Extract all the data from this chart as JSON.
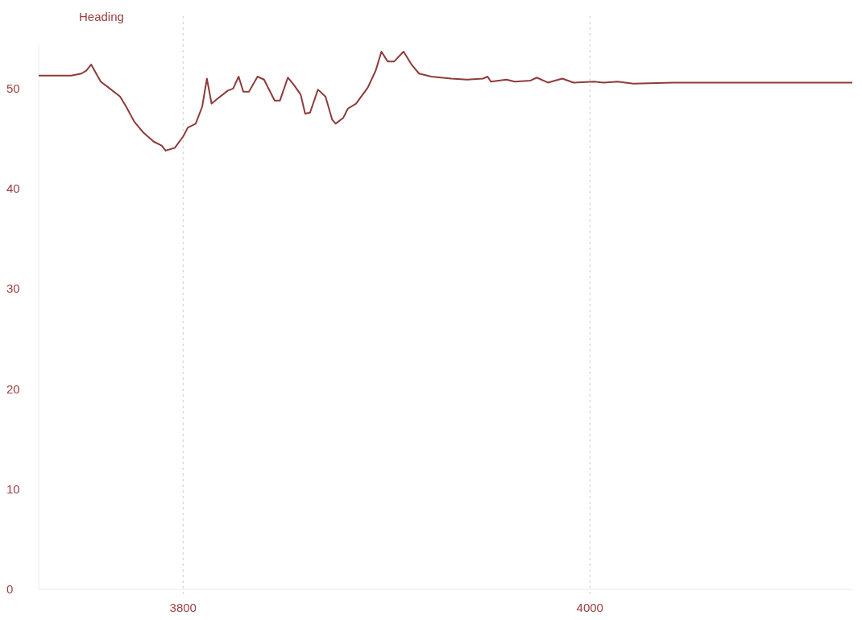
{
  "chart_data": {
    "type": "line",
    "title": "Heading",
    "xlim": [
      3729,
      4129
    ],
    "xticks": [
      3800,
      4000
    ],
    "ylim": [
      0,
      54.5
    ],
    "yticks": [
      0,
      10,
      20,
      30,
      40,
      50
    ],
    "grid": "x",
    "line_style": "solid",
    "marker": "none",
    "series": [
      {
        "color": "#8e3b3b",
        "x": [
          3729,
          3745,
          3750,
          3752.4,
          3754.8,
          3757,
          3759.5,
          3764,
          3769,
          3772,
          3776,
          3780.5,
          3785.6,
          3789.5,
          3791.4,
          3796,
          3800,
          3802.3,
          3806.2,
          3809.4,
          3811.7,
          3814,
          3817,
          3822,
          3824.6,
          3827.3,
          3829.6,
          3832.4,
          3836.6,
          3839.8,
          3845,
          3847.6,
          3851.5,
          3854.7,
          3857.8,
          3860,
          3862.4,
          3866.3,
          3870,
          3873.3,
          3875,
          3878.8,
          3881,
          3885,
          3890.8,
          3894.7,
          3897.5,
          3900.6,
          3903.7,
          3908.4,
          3912.3,
          3916,
          3922,
          3931.8,
          3939.6,
          3947.4,
          3949.7,
          3951.3,
          3959,
          3963,
          3970.8,
          3973.9,
          3979.3,
          3986.4,
          3992,
          4002,
          4006.6,
          4013.6,
          4021.4,
          4041,
          4064,
          4129
        ],
        "values": [
          51.3,
          51.3,
          51.5,
          51.8,
          52.4,
          51.6,
          50.7,
          50.0,
          49.2,
          48.2,
          46.7,
          45.6,
          44.7,
          44.3,
          43.8,
          44.1,
          45.2,
          46.1,
          46.5,
          48.2,
          51.0,
          48.5,
          49.0,
          49.8,
          50.0,
          51.2,
          49.7,
          49.7,
          51.2,
          50.9,
          48.8,
          48.8,
          51.1,
          50.3,
          49.4,
          47.5,
          47.6,
          49.9,
          49.2,
          46.9,
          46.5,
          47.1,
          48.0,
          48.5,
          50.1,
          51.8,
          53.7,
          52.7,
          52.7,
          53.7,
          52.4,
          51.5,
          51.2,
          51.0,
          50.9,
          51.0,
          51.2,
          50.7,
          50.9,
          50.7,
          50.8,
          51.1,
          50.6,
          51.0,
          50.6,
          50.7,
          50.6,
          50.7,
          50.5,
          50.6,
          50.6,
          50.6
        ]
      }
    ]
  }
}
